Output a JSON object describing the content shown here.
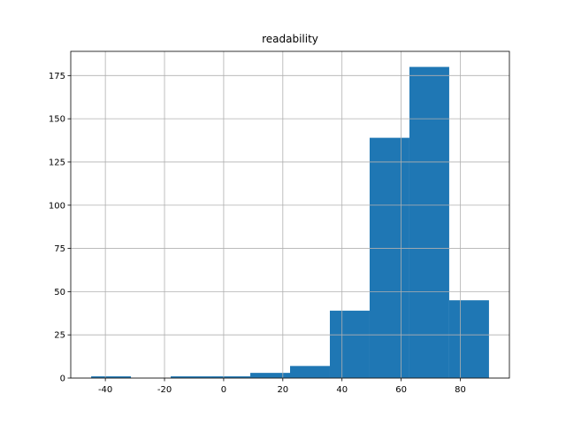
{
  "chart_data": {
    "type": "histogram",
    "title": "readability",
    "bins": [
      -44.8,
      -31.35,
      -17.9,
      -4.45,
      9.0,
      22.45,
      35.9,
      49.35,
      62.8,
      76.25,
      89.7
    ],
    "values": [
      1,
      0,
      1,
      1,
      3,
      7,
      39,
      139,
      180,
      45
    ],
    "color": "#1f77b4",
    "xlim": [
      -51.7,
      96.6
    ],
    "xticks": [
      -40,
      -20,
      0,
      20,
      40,
      60,
      80
    ],
    "ylim": [
      0,
      189
    ],
    "yticks": [
      0,
      25,
      50,
      75,
      100,
      125,
      150,
      175
    ],
    "grid": true
  }
}
